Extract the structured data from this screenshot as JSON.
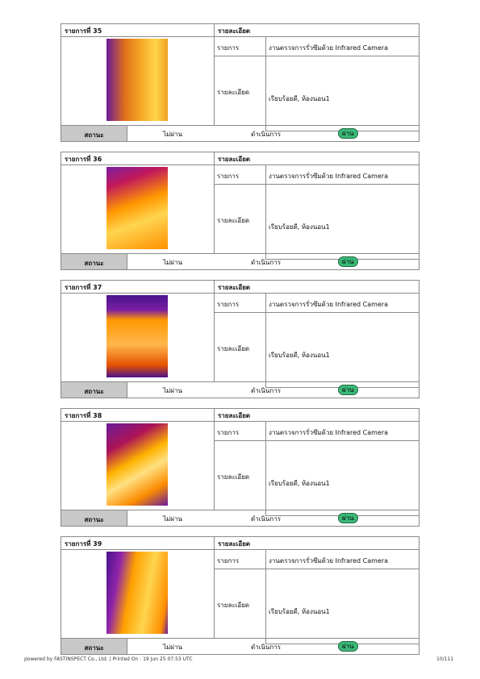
{
  "items": [
    {
      "title": "รายการที่ 35",
      "detail_header": "รายละเอียด",
      "label1": "รายการ",
      "value1": "งานตรวจการรั่วซึมด้วย Infrared Camera",
      "label2": "รายละเอียด",
      "value2": "เรียบร้อยดี, ห้องนอน1",
      "status_label": "สถานะ",
      "options": [
        "ไม่ผ่าน",
        "ดำเนินการ",
        "ผ่าน"
      ]
    },
    {
      "title": "รายการที่ 36",
      "detail_header": "รายละเอียด",
      "label1": "รายการ",
      "value1": "งานตรวจการรั่วซึมด้วย Infrared Camera",
      "label2": "รายละเอียด",
      "value2": "เรียบร้อยดี, ห้องนอน1",
      "status_label": "สถานะ",
      "options": [
        "ไม่ผ่าน",
        "ดำเนินการ",
        "ผ่าน"
      ]
    },
    {
      "title": "รายการที่ 37",
      "detail_header": "รายละเอียด",
      "label1": "รายการ",
      "value1": "งานตรวจการรั่วซึมด้วย Infrared Camera",
      "label2": "รายละเอียด",
      "value2": "เรียบร้อยดี, ห้องนอน1",
      "status_label": "สถานะ",
      "options": [
        "ไม่ผ่าน",
        "ดำเนินการ",
        "ผ่าน"
      ]
    },
    {
      "title": "รายการที่ 38",
      "detail_header": "รายละเอียด",
      "label1": "รายการ",
      "value1": "งานตรวจการรั่วซึมด้วย Infrared Camera",
      "label2": "รายละเอียด",
      "value2": "เรียบร้อยดี, ห้องนอน1",
      "status_label": "สถานะ",
      "options": [
        "ไม่ผ่าน",
        "ดำเนินการ",
        "ผ่าน"
      ]
    },
    {
      "title": "รายการที่ 39",
      "detail_header": "รายละเอียด",
      "label1": "รายการ",
      "value1": "งานตรวจการรั่วซึมด้วย Infrared Camera",
      "label2": "รายละเอียด",
      "value2": "เรียบร้อยดี, ห้องนอน1",
      "status_label": "สถานะ",
      "options": [
        "ไม่ผ่าน",
        "ดำเนินการ",
        "ผ่าน"
      ]
    }
  ],
  "footer": {
    "text": "powered by FASTINSPECT Co., Ltd. | Printed On : 19 Jun 25 07:53 UTC",
    "page": "10/111"
  }
}
